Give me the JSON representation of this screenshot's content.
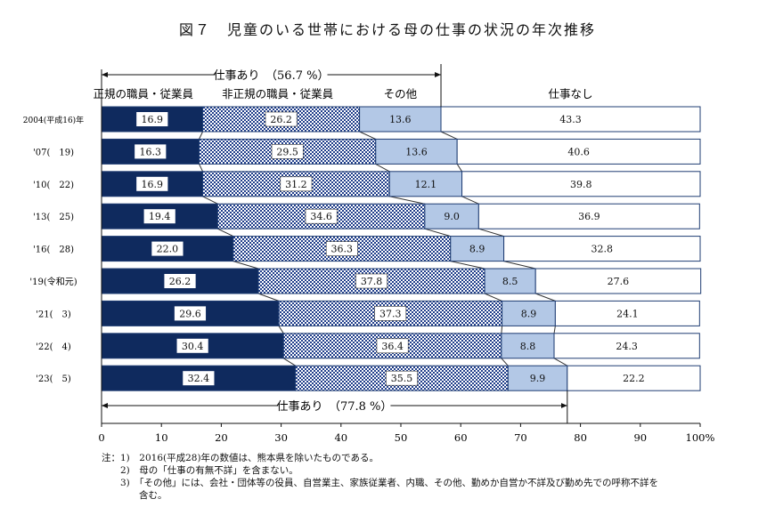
{
  "chart_data": {
    "type": "bar",
    "stacked": true,
    "orientation": "horizontal",
    "title": "図７　児童のいる世帯における母の仕事の状況の年次推移",
    "categories": [
      "2004(平成16)年",
      "'07(　19)",
      "'10(　22)",
      "'13(　25)",
      "'16(　28)",
      "'19(令和元)",
      "'21(　3)",
      "'22(　4)",
      "'23(　5)"
    ],
    "series": [
      {
        "name": "正規の職員・従業員",
        "values": [
          16.9,
          16.3,
          16.9,
          19.4,
          22.0,
          26.2,
          29.6,
          30.4,
          32.4
        ],
        "labels": [
          "16.9",
          "16.3",
          "16.9",
          "19.4",
          "22.0",
          "26.2",
          "29.6",
          "30.4",
          "32.4"
        ]
      },
      {
        "name": "非正規の職員・従業員",
        "values": [
          26.2,
          29.5,
          31.2,
          34.6,
          36.3,
          37.8,
          37.3,
          36.4,
          35.5
        ],
        "labels": [
          "26.2",
          "29.5",
          "31.2",
          "34.6",
          "36.3",
          "37.8",
          "37.3",
          "36.4",
          "35.5"
        ]
      },
      {
        "name": "その他",
        "values": [
          13.6,
          13.6,
          12.1,
          9.0,
          8.9,
          8.5,
          8.9,
          8.8,
          9.9
        ],
        "labels": [
          "13.6",
          "13.6",
          "12.1",
          "9.0",
          "8.9",
          "8.5",
          "8.9",
          "8.8",
          "9.9"
        ]
      },
      {
        "name": "仕事なし",
        "values": [
          43.3,
          40.6,
          39.8,
          36.9,
          32.8,
          27.6,
          24.1,
          24.3,
          22.2
        ],
        "labels": [
          "43.3",
          "40.6",
          "39.8",
          "36.9",
          "32.8",
          "27.6",
          "24.1",
          "24.3",
          "22.2"
        ]
      }
    ],
    "xlim": [
      0,
      100
    ],
    "xticks": [
      "0",
      "10",
      "20",
      "30",
      "40",
      "50",
      "60",
      "70",
      "80",
      "90",
      "100%"
    ],
    "annotations": [
      {
        "text": "仕事あり　（56.7 %）",
        "from": 0,
        "to": 56.7,
        "position": "top"
      },
      {
        "text": "仕事あり　（77.8 %）",
        "from": 0,
        "to": 77.8,
        "position": "bottom"
      }
    ],
    "colors": {
      "regular": "#0f2a5e",
      "nonregular_pattern": "#1f3d8a",
      "other": "#b3c8e6",
      "none": "#ffffff",
      "outline": "#1f3d73"
    },
    "grid": false,
    "legend": "top"
  },
  "notes": [
    "注：1)　2016(平成28)年の数値は、熊本県を除いたものである。",
    "　　2)　母の「仕事の有無不詳」を含まない。",
    "　　3)　「その他」には、会社・団体等の役員、自営業主、家族従業者、内職、その他、勤めか自営か不詳及び勤め先での呼称不詳を",
    "　　　　含む。"
  ]
}
